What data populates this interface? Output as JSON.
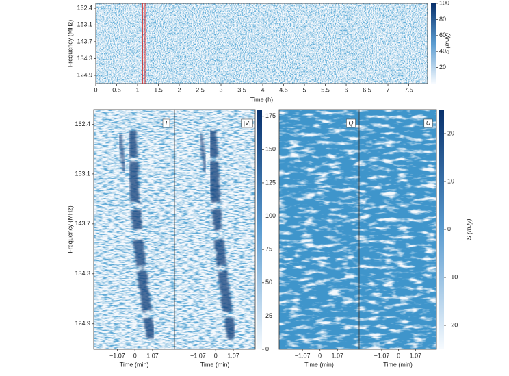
{
  "chart_data": [
    {
      "type": "heatmap",
      "x_label": "Time (h)",
      "y_label": "Frequency (MHz)",
      "xlim": [
        0,
        7.95
      ],
      "xticks": [
        0,
        0.5,
        1.0,
        1.5,
        2.0,
        2.5,
        3.0,
        3.5,
        4.0,
        4.5,
        5.0,
        5.5,
        6.0,
        6.5,
        7.0,
        7.5
      ],
      "ylim": [
        120.3,
        165.1
      ],
      "yticks": [
        124.9,
        134.3,
        143.7,
        153.1,
        162.4
      ],
      "colorbar": {
        "label": "S (mJy)",
        "lim": [
          0,
          100
        ],
        "ticks": [
          20,
          40,
          60,
          80,
          100
        ]
      },
      "highlight_x": [
        1.12,
        1.18
      ],
      "highlight_color": "#d62728"
    },
    {
      "type": "heatmap",
      "panels": [
        "I",
        "|V|"
      ],
      "x_label": "Time (min)",
      "y_label": "Frequency (MHz)",
      "xlim": [
        -2.5,
        2.4
      ],
      "xticks": [
        {
          "value": -1.07,
          "label": "−1.07"
        },
        0,
        1.07
      ],
      "ylim": [
        120.1,
        165.2
      ],
      "yticks": [
        124.9,
        134.3,
        143.7,
        153.1,
        162.4
      ],
      "colorbar": {
        "lim": [
          0,
          180
        ],
        "ticks": [
          0,
          25,
          50,
          75,
          100,
          125,
          150,
          175
        ]
      }
    },
    {
      "type": "heatmap",
      "panels": [
        "Q",
        "U"
      ],
      "x_label": "Time (min)",
      "xlim": [
        -2.5,
        2.4
      ],
      "xticks": [
        {
          "value": -1.07,
          "label": "−1.07"
        },
        0,
        1.07
      ],
      "colorbar": {
        "label": "S (mJy)",
        "lim": [
          -25,
          25
        ],
        "ticks": [
          {
            "value": -20,
            "label": "−20"
          },
          {
            "value": -10,
            "label": "−10"
          },
          0,
          10,
          20
        ]
      }
    }
  ]
}
